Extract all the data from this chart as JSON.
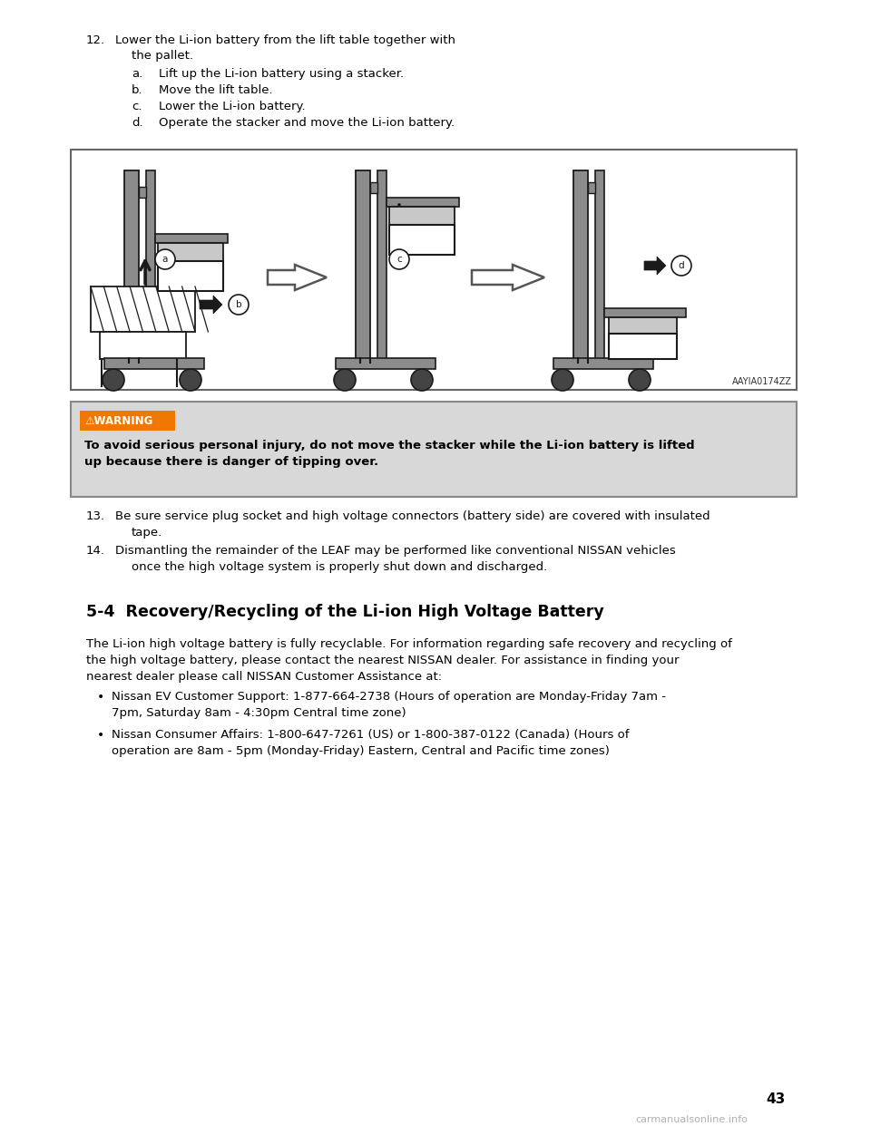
{
  "bg_color": "#ffffff",
  "text_color": "#000000",
  "page_number": "43",
  "warning_bg": "#d8d8d8",
  "warning_title_bg": "#f07800",
  "warning_text_line1": "To avoid serious personal injury, do not move the stacker while the Li-ion battery is lifted",
  "warning_text_line2": "up because there is danger of tipping over.",
  "diagram_label": "AAYIA0174ZZ",
  "section_title": "5-4  Recovery/Recycling of the Li-ion High Voltage Battery",
  "section_body_line1": "The Li-ion high voltage battery is fully recyclable. For information regarding safe recovery and recycling of",
  "section_body_line2": "the high voltage battery, please contact the nearest NISSAN dealer. For assistance in finding your",
  "section_body_line3": "nearest dealer please call NISSAN Customer Assistance at:",
  "bullet1_line1": "Nissan EV Customer Support: 1-877-664-2738 (Hours of operation are Monday-Friday 7am -",
  "bullet1_line2": "7pm, Saturday 8am - 4:30pm Central time zone)",
  "bullet2_line1": "Nissan Consumer Affairs: 1-800-647-7261 (US) or 1-800-387-0122 (Canada) (Hours of",
  "bullet2_line2": "operation are 8am - 5pm (Monday-Friday) Eastern, Central and Pacific time zones)",
  "watermark": "carmanualsonline.info",
  "gray_stacker": "#8c8c8c",
  "dark": "#1a1a1a",
  "light_gray": "#c8c8c8",
  "mid_gray": "#a0a0a0"
}
